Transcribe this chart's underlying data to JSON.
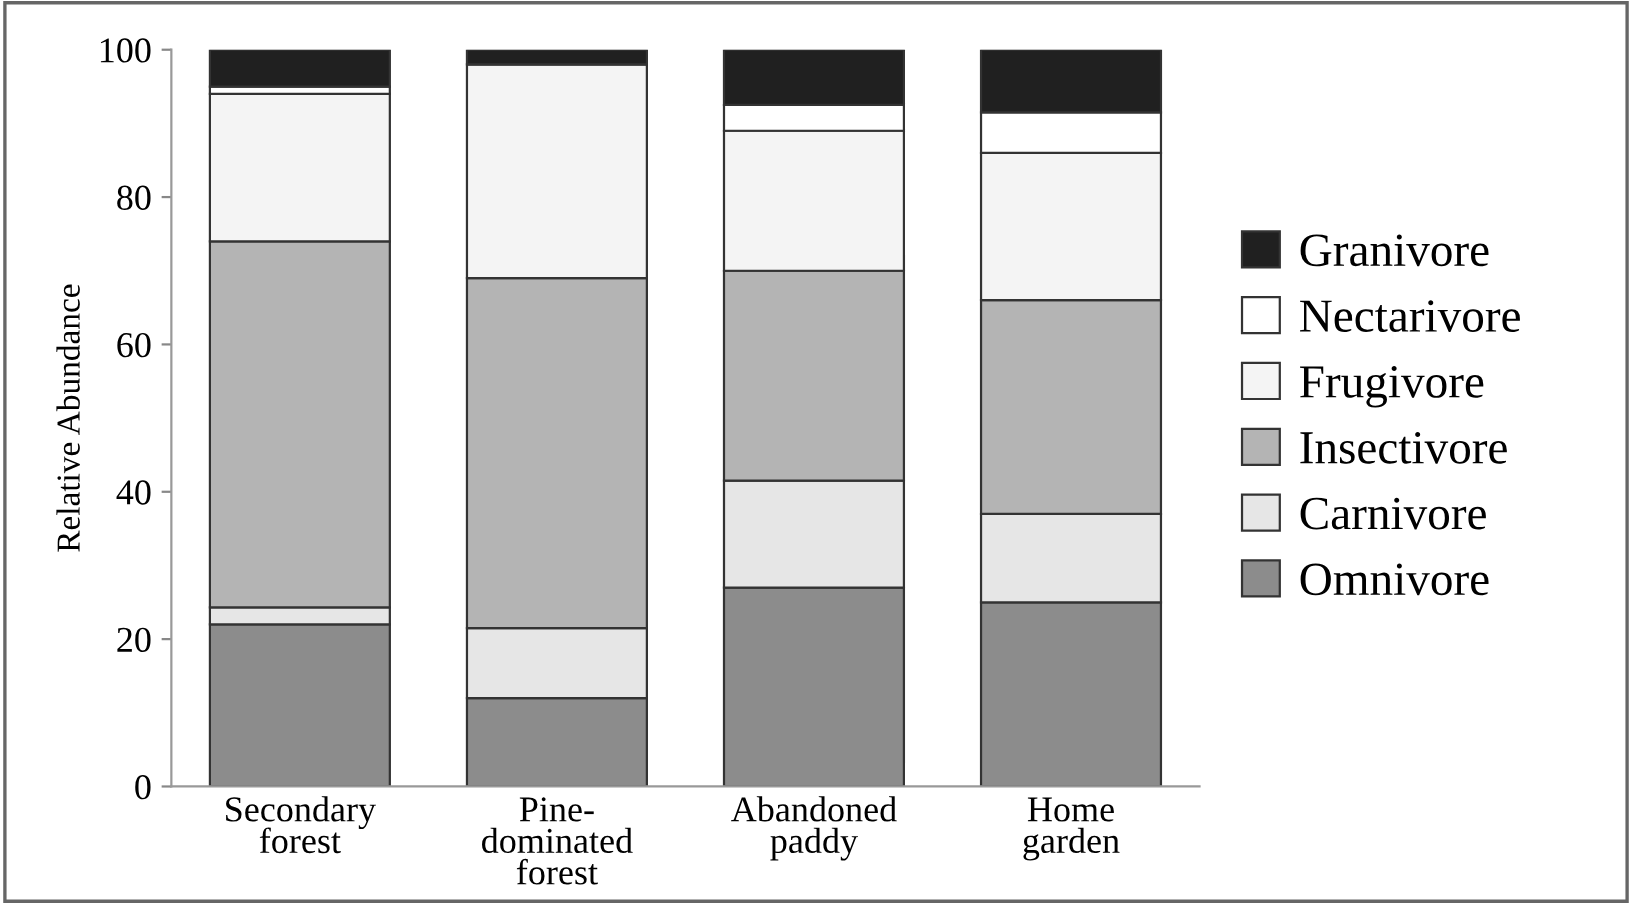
{
  "chart_data": {
    "type": "bar",
    "stacked": true,
    "ylabel": "Relative Abundance",
    "categories": [
      "Secondary\nforest",
      "Pine-\ndominated\nforest",
      "Abandoned\npaddy",
      "Home\ngarden"
    ],
    "series": [
      {
        "name": "Omnivore",
        "color": "#8c8c8c",
        "values": [
          22,
          12,
          27,
          25
        ]
      },
      {
        "name": "Carnivore",
        "color": "#e6e6e6",
        "values": [
          2.3,
          9.5,
          14.5,
          12
        ]
      },
      {
        "name": "Insectivore",
        "color": "#b4b4b4",
        "values": [
          49.7,
          47.5,
          28.5,
          29
        ]
      },
      {
        "name": "Frugivore",
        "color": "#f4f4f4",
        "values": [
          20,
          29,
          19,
          20
        ]
      },
      {
        "name": "Nectarivore",
        "color": "#ffffff",
        "values": [
          1,
          null,
          3.5,
          5.5
        ]
      },
      {
        "name": "Granivore",
        "color": "#202020",
        "values": [
          5,
          2,
          7.5,
          8.5
        ]
      }
    ],
    "ylim": [
      0,
      100
    ],
    "yticks": [
      0,
      20,
      40,
      60,
      80,
      100
    ],
    "grid": false,
    "legend": "right"
  }
}
